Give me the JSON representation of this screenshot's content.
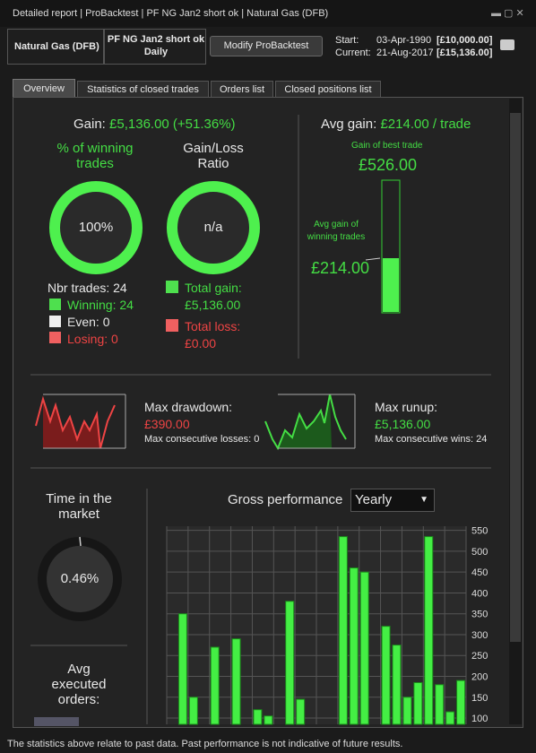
{
  "window": {
    "tabs": [
      "Detailed report",
      "ProBacktest",
      "PF NG Jan2 short ok",
      "Natural Gas (DFB)"
    ]
  },
  "header": {
    "instrument": "Natural Gas (DFB)",
    "system": "PF NG Jan2 short ok",
    "period": "Daily",
    "button": "Modify ProBacktest",
    "start_label": "Start:",
    "start_date": "03-Apr-1990",
    "start_value": "[£10,000.00]",
    "current_label": "Current:",
    "current_date": "21-Aug-2017",
    "current_value": "[£15,136.00]"
  },
  "tabs": [
    "Overview",
    "Statistics of closed trades",
    "Orders list",
    "Closed positions list"
  ],
  "gain": {
    "label": "Gain:",
    "value": "£5,136.00 (+51.36%)"
  },
  "winning": {
    "title": "% of winning trades",
    "value": "100%"
  },
  "ratio": {
    "title": "Gain/Loss Ratio",
    "value": "n/a"
  },
  "trades": {
    "count": "Nbr trades: 24",
    "winning": "Winning: 24",
    "even": "Even: 0",
    "losing": "Losing: 0",
    "total_gain_label": "Total gain:",
    "total_gain": "£5,136.00",
    "total_loss_label": "Total loss:",
    "total_loss": "£0.00"
  },
  "avg_gain": {
    "label": "Avg gain:",
    "value": "£214.00 / trade",
    "best_label": "Gain of best trade",
    "best": "£526.00",
    "avg_label": "Avg gain of winning trades",
    "avg": "£214.00"
  },
  "drawdown": {
    "label": "Max drawdown:",
    "value": "£390.00",
    "note": "Max consecutive losses: 0"
  },
  "runup": {
    "label": "Max runup:",
    "value": "£5,136.00",
    "note": "Max consecutive wins: 24"
  },
  "market": {
    "title": "Time in the market",
    "value": "0.46%"
  },
  "orders": {
    "title": "Avg executed orders:"
  },
  "gross": {
    "title": "Gross performance",
    "period": "Yearly",
    "values": [
      null,
      350,
      150,
      null,
      270,
      null,
      290,
      null,
      120,
      105,
      null,
      380,
      145,
      null,
      null,
      null,
      535,
      460,
      450,
      null,
      320,
      275,
      150,
      185,
      535,
      180,
      115,
      190
    ],
    "color": "#44ee44",
    "ylim": [
      85,
      560
    ],
    "yticks": [
      100,
      150,
      200,
      250,
      300,
      350,
      400,
      450,
      500,
      550
    ],
    "grid": true
  },
  "footer": "The statistics above relate to past data. Past performance is not indicative of future results."
}
